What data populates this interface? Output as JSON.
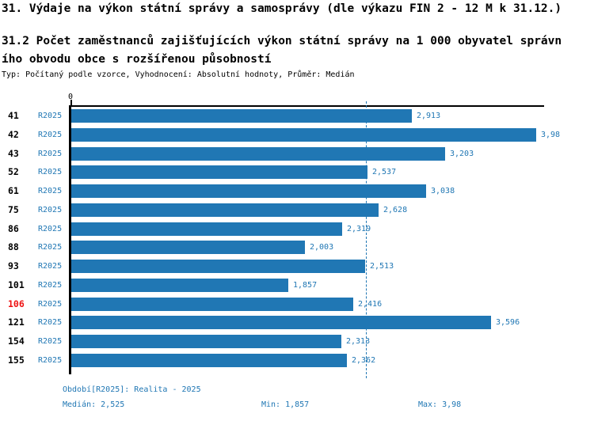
{
  "header": {
    "title": "31. Výdaje na výkon státní správy a samosprávy (dle výkazu FIN 2 - 12 M k 31.12.)",
    "subtitle_line1": "31.2 Počet zaměstnanců zajišťujících výkon státní správy na 1 000 obyvatel správn",
    "subtitle_line2": "ího obvodu obce s rozšířenou působností",
    "meta": "Typ: Počítaný podle vzorce, Vyhodnocení: Absolutní hodnoty, Průměr: Medián"
  },
  "colors": {
    "accent": "#2077b4",
    "highlight": "#ee1111",
    "axis": "#000000"
  },
  "chart_data": {
    "type": "bar",
    "orientation": "horizontal",
    "title": "31.2 Počet zaměstnanců zajišťujících výkon státní správy na 1 000 obyvatel správního obvodu obce s rozšířenou působností",
    "xlabel": "",
    "ylabel": "",
    "xlim": [
      0,
      4.05
    ],
    "x_tick_labels": [
      "0"
    ],
    "grid": false,
    "legend_position": "none",
    "categories": [
      "41",
      "42",
      "43",
      "52",
      "61",
      "75",
      "86",
      "88",
      "93",
      "101",
      "106",
      "121",
      "154",
      "155"
    ],
    "series": [
      {
        "name": "R2025",
        "values": [
          2.913,
          3.98,
          3.203,
          2.537,
          3.038,
          2.628,
          2.319,
          2.003,
          2.513,
          1.857,
          2.416,
          3.596,
          2.313,
          2.362
        ],
        "value_labels": [
          "2,913",
          "3,98",
          "3,203",
          "2,537",
          "3,038",
          "2,628",
          "2,319",
          "2,003",
          "2,513",
          "1,857",
          "2,416",
          "3,596",
          "2,313",
          "2,362"
        ]
      }
    ],
    "highlighted_category": "106",
    "median_value": 2.525,
    "min_value": 1.857,
    "max_value": 3.98
  },
  "footer": {
    "period": "Období[R2025]: Realita - 2025",
    "median": "Medián: 2,525",
    "min": "Min: 1,857",
    "max": "Max: 3,98"
  }
}
